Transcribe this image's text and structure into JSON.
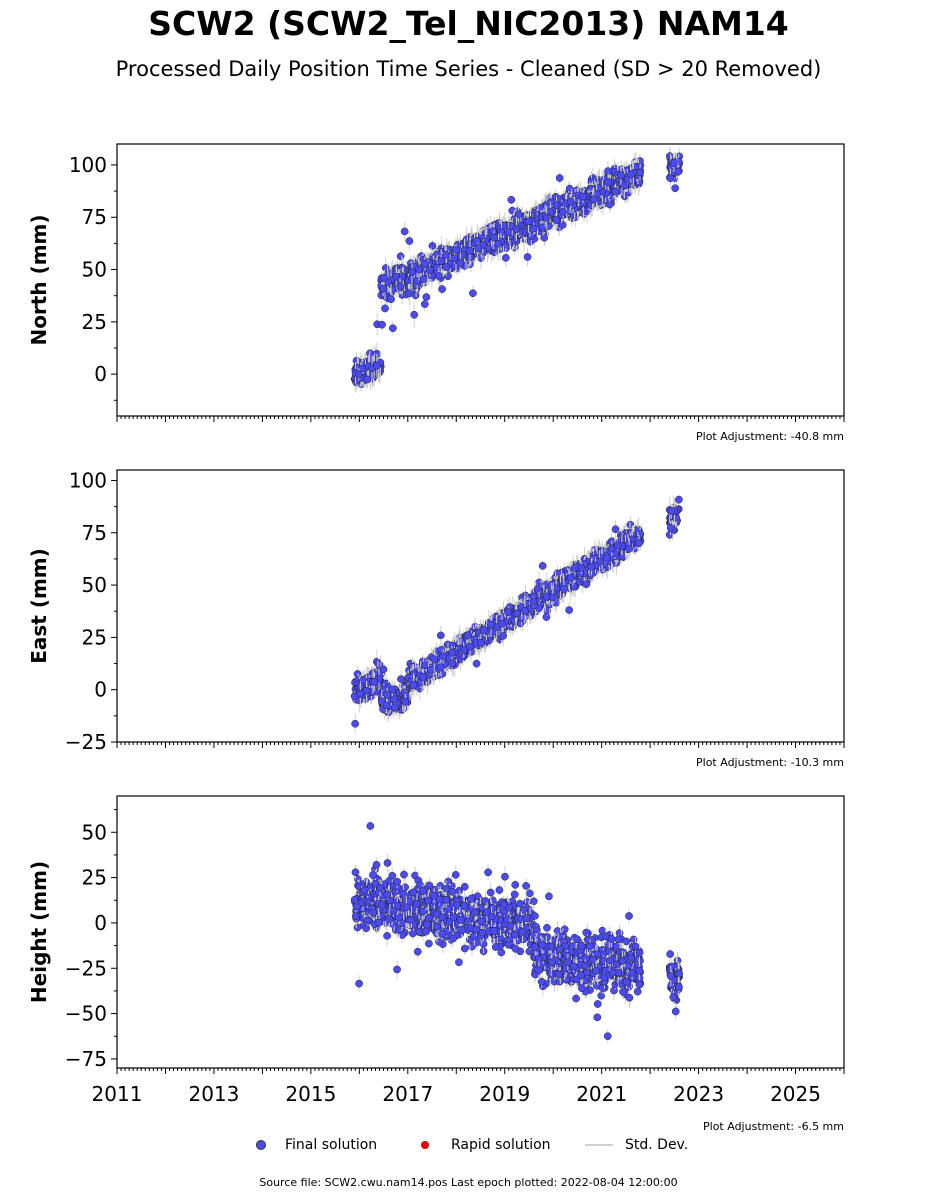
{
  "title": "SCW2 (SCW2_Tel_NIC2013) NAM14",
  "subtitle": "Processed Daily Position Time Series - Cleaned (SD > 20 Removed)",
  "legend": {
    "final": "Final solution",
    "rapid": "Rapid solution",
    "std": "Std. Dev."
  },
  "footer": "Source file: SCW2.cwu.nam14.pos  Last epoch plotted: 2022-08-04 12:00:00",
  "colors": {
    "final": "#4b4bf5",
    "rapid": "#e00000",
    "std": "#d0d0d0"
  },
  "chart_data": [
    {
      "type": "scatter",
      "ylabel": "North (mm)",
      "adjustment": "Plot Adjustment: -40.8 mm",
      "xlim": [
        2011,
        2026
      ],
      "ylim": [
        -20,
        110
      ],
      "yticks": [
        0,
        25,
        50,
        75,
        100
      ],
      "series": [
        {
          "name": "Final solution",
          "segments": [
            {
              "x0": 2015.9,
              "x1": 2016.45,
              "y0": 0,
              "y1": 5,
              "noise": 5
            },
            {
              "x0": 2016.45,
              "x1": 2017.0,
              "y0": 42,
              "y1": 46,
              "noise": 5
            },
            {
              "x0": 2017.0,
              "x1": 2021.8,
              "y0": 46,
              "y1": 96,
              "noise": 5
            },
            {
              "x0": 2022.4,
              "x1": 2022.6,
              "y0": 97,
              "y1": 99,
              "noise": 4
            }
          ]
        }
      ]
    },
    {
      "type": "scatter",
      "ylabel": "East (mm)",
      "adjustment": "Plot Adjustment: -10.3 mm",
      "xlim": [
        2011,
        2026
      ],
      "ylim": [
        -25,
        105
      ],
      "yticks": [
        -25,
        0,
        25,
        50,
        75,
        100
      ],
      "series": [
        {
          "name": "Final solution",
          "segments": [
            {
              "x0": 2015.9,
              "x1": 2016.45,
              "y0": 0,
              "y1": 5,
              "noise": 4
            },
            {
              "x0": 2016.45,
              "x1": 2017.0,
              "y0": -6,
              "y1": -4,
              "noise": 4
            },
            {
              "x0": 2017.0,
              "x1": 2021.8,
              "y0": 3,
              "y1": 74,
              "noise": 4
            },
            {
              "x0": 2022.4,
              "x1": 2022.6,
              "y0": 80,
              "y1": 85,
              "noise": 5
            }
          ]
        }
      ]
    },
    {
      "type": "scatter",
      "ylabel": "Height (mm)",
      "adjustment": "Plot Adjustment: -6.5 mm",
      "xlim": [
        2011,
        2026
      ],
      "ylim": [
        -80,
        70
      ],
      "yticks": [
        -75,
        -50,
        -25,
        0,
        25,
        50
      ],
      "xticks": [
        2011,
        2013,
        2015,
        2017,
        2019,
        2021,
        2023,
        2025
      ],
      "series": [
        {
          "name": "Final solution",
          "segments": [
            {
              "x0": 2015.9,
              "x1": 2019.6,
              "y0": 12,
              "y1": -2,
              "noise": 11
            },
            {
              "x0": 2019.6,
              "x1": 2021.8,
              "y0": -20,
              "y1": -25,
              "noise": 11
            },
            {
              "x0": 2022.4,
              "x1": 2022.6,
              "y0": -32,
              "y1": -32,
              "noise": 10
            }
          ]
        }
      ]
    }
  ]
}
